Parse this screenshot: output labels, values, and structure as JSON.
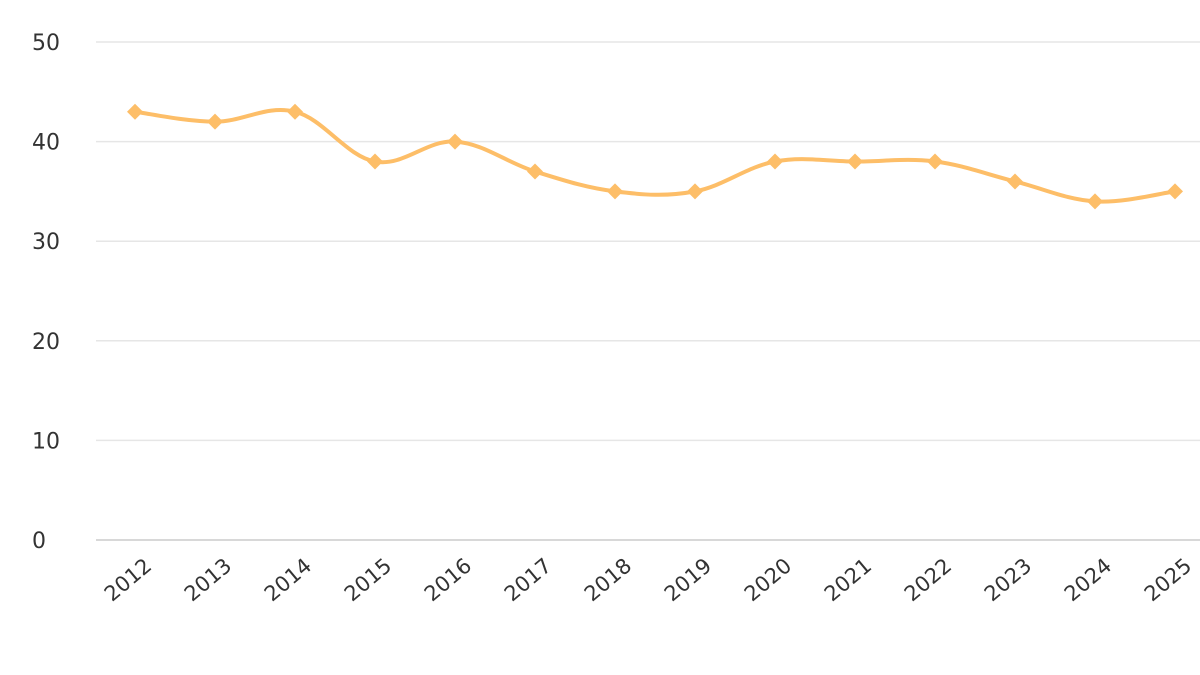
{
  "chart_data": {
    "type": "line",
    "categories": [
      "2012",
      "2013",
      "2014",
      "2015",
      "2016",
      "2017",
      "2018",
      "2019",
      "2020",
      "2021",
      "2022",
      "2023",
      "2024",
      "2025"
    ],
    "series": [
      {
        "values": [
          43,
          42,
          43,
          38,
          40,
          37,
          35,
          35,
          38,
          38,
          38,
          36,
          34,
          35
        ],
        "color": "#fdbe68"
      }
    ],
    "title": "",
    "xlabel": "",
    "ylabel": "",
    "ylim": [
      0,
      50
    ],
    "yticks": [
      "0",
      "10",
      "20",
      "30",
      "40",
      "50"
    ],
    "grid": true,
    "marker": "diamond",
    "smooth": true
  }
}
